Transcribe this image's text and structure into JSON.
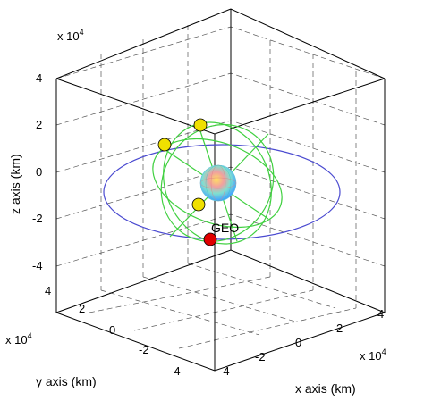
{
  "axes": {
    "z_label": "z axis (km)",
    "y_label": "y axis (km)",
    "x_label": "x axis (km)",
    "z_exponent": "x 10",
    "y_exponent": "x 10",
    "x_exponent": "x 10",
    "exponent_power": "4",
    "z_ticks": [
      "4",
      "2",
      "0",
      "-2",
      "-4"
    ],
    "y_ticks": [
      "4",
      "2",
      "0",
      "-2",
      "-4"
    ],
    "x_ticks": [
      "-4",
      "-2",
      "0",
      "2",
      "4"
    ],
    "grid": true
  },
  "labels": {
    "geo": "GEO"
  },
  "colors": {
    "geo_orbit": "#4a4ad0",
    "meo_orbits": "#40d040",
    "geo_satellite": "#e00000",
    "meo_satellites": "#f0e000"
  }
}
